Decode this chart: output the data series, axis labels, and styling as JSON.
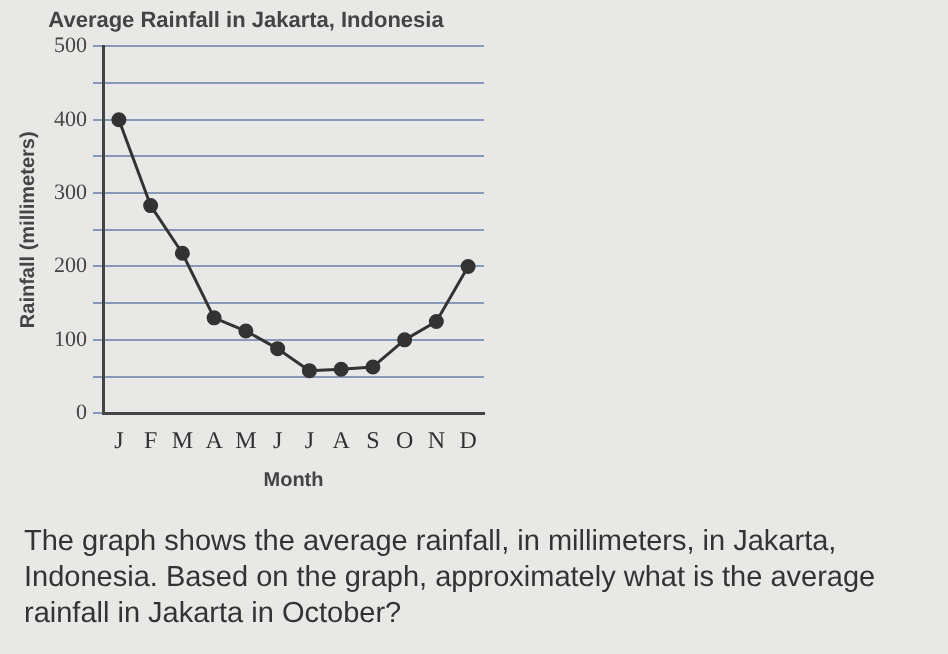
{
  "chart_data": {
    "type": "line",
    "title": "Average Rainfall in Jakarta, Indonesia",
    "xlabel": "Month",
    "ylabel": "Rainfall (millimeters)",
    "categories": [
      "J",
      "F",
      "M",
      "A",
      "M",
      "J",
      "J",
      "A",
      "S",
      "O",
      "N",
      "D"
    ],
    "series": [
      {
        "color": "#333333",
        "values": [
          400,
          283,
          218,
          130,
          112,
          88,
          58,
          60,
          63,
          100,
          125,
          200
        ]
      }
    ],
    "ylim": [
      0,
      500
    ],
    "yticks": [
      0,
      {
        "value": 50,
        "label": null
      },
      100,
      {
        "value": 150,
        "label": null
      },
      200,
      {
        "value": 250,
        "label": null
      },
      300,
      {
        "value": 350,
        "label": null
      },
      400,
      {
        "value": 450,
        "label": null
      },
      500
    ],
    "grid": "y",
    "legend": false,
    "marker": "circle",
    "line_style": "solid",
    "annotations": [
      "The graph shows the average rainfall, in millimeters, in Jakarta, Indonesia. Based on the graph, approximately what is the average rainfall in Jakarta in October?"
    ]
  }
}
